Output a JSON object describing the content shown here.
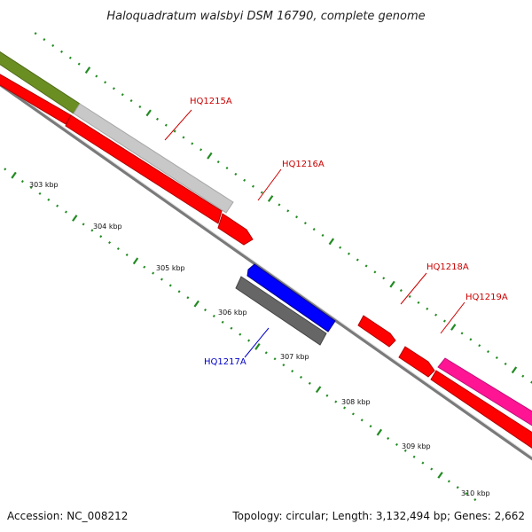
{
  "title": "Haloquadratum walsbyi DSM 16790, complete genome",
  "footer": {
    "accession": "Accession: NC_008212",
    "summary": "Topology: circular; Length: 3,132,494 bp; Genes: 2,662"
  },
  "colors": {
    "forward_gene": "#ff0000",
    "reverse_gene_blue": "#0000ff",
    "gray_gene": "#666666",
    "light_gray_feature": "#c8c8c8",
    "olive_feature": "#6b8e23",
    "magenta_feature": "#ff1493",
    "tick": "#228b22",
    "backbone": "#7a7a7a"
  },
  "scale_labels": [
    "303 kbp",
    "304 kbp",
    "305 kbp",
    "306 kbp",
    "307 kbp",
    "308 kbp",
    "309 kbp",
    "310 kbp"
  ],
  "gene_labels": [
    {
      "name": "HQ1215A",
      "color": "#cc0000"
    },
    {
      "name": "HQ1216A",
      "color": "#cc0000"
    },
    {
      "name": "HQ1218A",
      "color": "#cc0000"
    },
    {
      "name": "HQ1219A",
      "color": "#cc0000"
    },
    {
      "name": "HQ1217A",
      "color": "#0000cc"
    }
  ]
}
